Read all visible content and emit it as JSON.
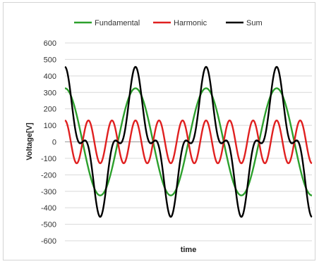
{
  "chart_data": {
    "type": "line",
    "title": "",
    "xlabel": "time",
    "ylabel": "Voltage[V]",
    "ylim": [
      -600,
      600
    ],
    "y_ticks": [
      "600",
      "500",
      "400",
      "300",
      "200",
      "100",
      "0",
      "-100",
      "-200",
      "-300",
      "-400",
      "-500",
      "-600"
    ],
    "grid": true,
    "legend_position": "top",
    "fundamental_cycles": 3.5,
    "series": [
      {
        "name": "Fundamental",
        "color": "#2ca02c",
        "amplitude": 325,
        "harmonic_order": 1
      },
      {
        "name": "Harmonic",
        "color": "#e02020",
        "amplitude": 130,
        "harmonic_order": 3
      },
      {
        "name": "Sum",
        "color": "#000000",
        "components": [
          "Fundamental",
          "Harmonic"
        ],
        "peak": 455
      }
    ]
  }
}
